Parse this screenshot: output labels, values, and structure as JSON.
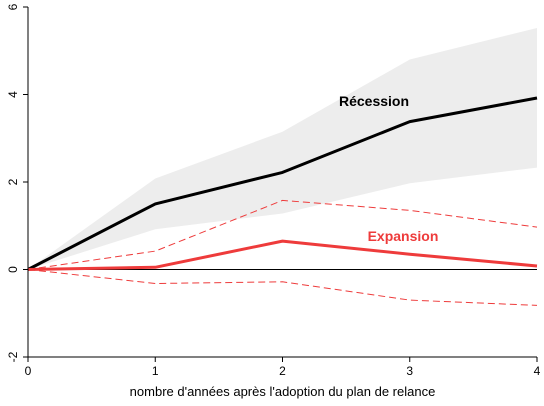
{
  "chart_data": {
    "type": "line",
    "title": "",
    "xlabel": "nombre d'années après l'adoption du plan de relance",
    "ylabel": "",
    "xlim": [
      0,
      4
    ],
    "ylim": [
      -2,
      6
    ],
    "x_ticks": [
      "0",
      "1",
      "2",
      "3",
      "4"
    ],
    "y_ticks": [
      "-2",
      "0",
      "2",
      "4",
      "6"
    ],
    "grid": false,
    "legend": "none",
    "x": [
      0,
      1,
      2,
      3,
      4
    ],
    "series": [
      {
        "name": "Récession",
        "color": "#000000",
        "values": [
          0,
          1.5,
          2.22,
          3.38,
          3.92
        ],
        "band_lower": [
          0,
          0.92,
          1.28,
          1.97,
          2.33
        ],
        "band_upper": [
          0,
          2.08,
          3.15,
          4.8,
          5.52
        ],
        "band_style": "shaded",
        "band_color": "#ededed"
      },
      {
        "name": "Expansion",
        "color": "#ee3b3b",
        "values": [
          0,
          0.05,
          0.65,
          0.35,
          0.08
        ],
        "band_lower": [
          0,
          -0.32,
          -0.28,
          -0.7,
          -0.82
        ],
        "band_upper": [
          0,
          0.42,
          1.58,
          1.35,
          0.97
        ],
        "band_style": "dashed"
      }
    ],
    "reference_line": {
      "y": 0,
      "color": "#000000"
    }
  }
}
